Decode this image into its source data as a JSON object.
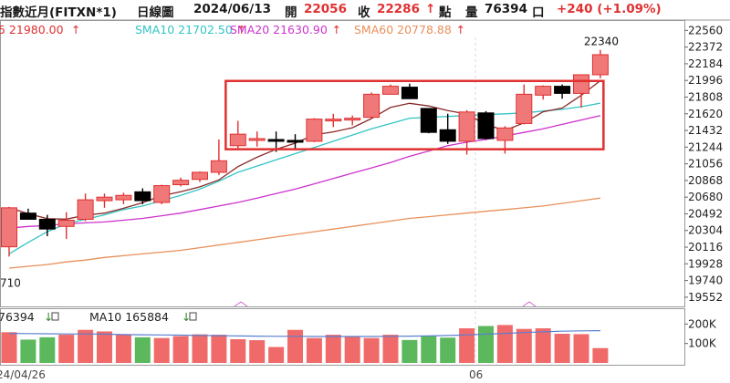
{
  "header": {
    "title": "指數近月(FITXN*1)",
    "period": "日線圖",
    "date": "2024/06/13",
    "open_label": "開",
    "open": "22056",
    "close_label": "收",
    "close": "22286",
    "close_arrow": "↑",
    "point_label": "點",
    "volume_label": "量",
    "volume": "76394",
    "volume_unit": "口",
    "change": "+240 (+1.09%)"
  },
  "colors": {
    "up": "#f07878",
    "up_border": "#e03030",
    "down": "#000000",
    "sma5": "#8b2a2a",
    "sma10": "#33c4c4",
    "sma20": "#cc33cc",
    "sma60": "#e8905a",
    "vol_up": "#f06a6a",
    "vol_down": "#5cb85c",
    "vol_ma": "#5a7fd0",
    "highlight_box": "#e03030",
    "grid": "#d8d8d8"
  },
  "chart_data": {
    "type": "candlestick",
    "price_axis": {
      "ylim": [
        19448,
        22656
      ],
      "ticks": [
        "22560",
        "22372",
        "22184",
        "21996",
        "21808",
        "21620",
        "21432",
        "21244",
        "21056",
        "20868",
        "20680",
        "20492",
        "20304",
        "20116",
        "19928",
        "19740",
        "19552"
      ],
      "left_cut_label": "710",
      "max_label": "22340"
    },
    "x_labels": [
      "24/04/26",
      "06"
    ],
    "legend": [
      {
        "name": "5",
        "value": "21980.00",
        "arrow": "↑",
        "color": "#e03030"
      },
      {
        "name": "SMA10",
        "value": "21702.50",
        "arrow": "↑",
        "color": "#33c4c4"
      },
      {
        "name": "SMA20",
        "value": "21630.90",
        "arrow": "↑",
        "color": "#cc33cc"
      },
      {
        "name": "SMA60",
        "value": "20778.88",
        "arrow": "↑",
        "color": "#e8905a"
      }
    ],
    "candles": [
      {
        "o": 20120,
        "h": 20570,
        "l": 20010,
        "c": 20560
      },
      {
        "o": 20500,
        "h": 20550,
        "l": 20430,
        "c": 20430
      },
      {
        "o": 20430,
        "h": 20480,
        "l": 20240,
        "c": 20320
      },
      {
        "o": 20350,
        "h": 20510,
        "l": 20210,
        "c": 20420
      },
      {
        "o": 20430,
        "h": 20720,
        "l": 20410,
        "c": 20650
      },
      {
        "o": 20640,
        "h": 20720,
        "l": 20560,
        "c": 20680
      },
      {
        "o": 20650,
        "h": 20730,
        "l": 20600,
        "c": 20700
      },
      {
        "o": 20740,
        "h": 20780,
        "l": 20600,
        "c": 20640
      },
      {
        "o": 20620,
        "h": 20820,
        "l": 20600,
        "c": 20810
      },
      {
        "o": 20820,
        "h": 20900,
        "l": 20800,
        "c": 20870
      },
      {
        "o": 20880,
        "h": 20970,
        "l": 20850,
        "c": 20960
      },
      {
        "o": 20960,
        "h": 21330,
        "l": 20930,
        "c": 21090
      },
      {
        "o": 21260,
        "h": 21540,
        "l": 21230,
        "c": 21390
      },
      {
        "o": 21340,
        "h": 21420,
        "l": 21250,
        "c": 21340
      },
      {
        "o": 21330,
        "h": 21420,
        "l": 21190,
        "c": 21320
      },
      {
        "o": 21320,
        "h": 21390,
        "l": 21230,
        "c": 21300
      },
      {
        "o": 21310,
        "h": 21570,
        "l": 21300,
        "c": 21560
      },
      {
        "o": 21560,
        "h": 21620,
        "l": 21470,
        "c": 21560
      },
      {
        "o": 21570,
        "h": 21600,
        "l": 21490,
        "c": 21570
      },
      {
        "o": 21580,
        "h": 21860,
        "l": 21570,
        "c": 21840
      },
      {
        "o": 21840,
        "h": 21950,
        "l": 21840,
        "c": 21930
      },
      {
        "o": 21920,
        "h": 21960,
        "l": 21790,
        "c": 21790
      },
      {
        "o": 21680,
        "h": 21680,
        "l": 21400,
        "c": 21410
      },
      {
        "o": 21440,
        "h": 21620,
        "l": 21280,
        "c": 21310
      },
      {
        "o": 21310,
        "h": 21660,
        "l": 21160,
        "c": 21640
      },
      {
        "o": 21630,
        "h": 21650,
        "l": 21330,
        "c": 21340
      },
      {
        "o": 21320,
        "h": 21480,
        "l": 21170,
        "c": 21460
      },
      {
        "o": 21510,
        "h": 21950,
        "l": 21500,
        "c": 21840
      },
      {
        "o": 21830,
        "h": 21940,
        "l": 21780,
        "c": 21930
      },
      {
        "o": 21930,
        "h": 21950,
        "l": 21790,
        "c": 21850
      },
      {
        "o": 21850,
        "h": 22050,
        "l": 21690,
        "c": 22060
      },
      {
        "o": 22060,
        "h": 22340,
        "l": 22020,
        "c": 22286
      }
    ],
    "sma10": [
      20040,
      20170,
      20290,
      20380,
      20430,
      20480,
      20540,
      20580,
      20640,
      20700,
      20770,
      20860,
      20960,
      21030,
      21100,
      21170,
      21240,
      21310,
      21380,
      21450,
      21510,
      21570,
      21580,
      21590,
      21600,
      21610,
      21620,
      21630,
      21650,
      21670,
      21700,
      21740
    ],
    "sma20": [
      20330,
      20350,
      20360,
      20380,
      20390,
      20400,
      20420,
      20440,
      20470,
      20500,
      20540,
      20580,
      20620,
      20670,
      20720,
      20770,
      20830,
      20890,
      20950,
      21010,
      21070,
      21140,
      21200,
      21260,
      21300,
      21330,
      21370,
      21410,
      21450,
      21500,
      21550,
      21600
    ],
    "sma60": [
      19880,
      19900,
      19920,
      19950,
      19970,
      20000,
      20020,
      20040,
      20060,
      20080,
      20110,
      20140,
      20170,
      20200,
      20230,
      20260,
      20290,
      20320,
      20350,
      20380,
      20410,
      20440,
      20460,
      20480,
      20500,
      20520,
      20540,
      20560,
      20580,
      20610,
      20640,
      20670
    ],
    "highlight_range": {
      "from_index": 12,
      "to_index": 31,
      "y_low": 21220,
      "y_high": 21990
    },
    "volume": {
      "legend_label": "76394",
      "legend_arrow": "↓",
      "ma_name": "MA10",
      "ma_value": "165884",
      "ma_arrow": "↓",
      "ticks": [
        "200K",
        "100K"
      ],
      "ylim": [
        0,
        272000
      ],
      "values": [
        158000,
        120000,
        132000,
        145000,
        170000,
        162000,
        145000,
        132000,
        128000,
        138000,
        147000,
        145000,
        122000,
        117000,
        82000,
        170000,
        128000,
        145000,
        138000,
        128000,
        145000,
        118000,
        138000,
        130000,
        178000,
        190000,
        195000,
        175000,
        178000,
        150000,
        148000,
        76394
      ],
      "up": [
        true,
        false,
        false,
        true,
        true,
        true,
        true,
        false,
        true,
        true,
        true,
        true,
        true,
        true,
        true,
        true,
        true,
        true,
        true,
        true,
        true,
        false,
        false,
        false,
        true,
        false,
        true,
        true,
        true,
        true,
        true,
        true
      ],
      "ma10": [
        152000,
        151000,
        150000,
        149000,
        149000,
        148000,
        146000,
        145000,
        144000,
        143000,
        141000,
        140000,
        139000,
        138000,
        137000,
        137000,
        136000,
        136000,
        136000,
        136000,
        137000,
        138000,
        139000,
        141000,
        144000,
        148000,
        152000,
        156000,
        160000,
        163000,
        165000,
        165884
      ]
    }
  }
}
